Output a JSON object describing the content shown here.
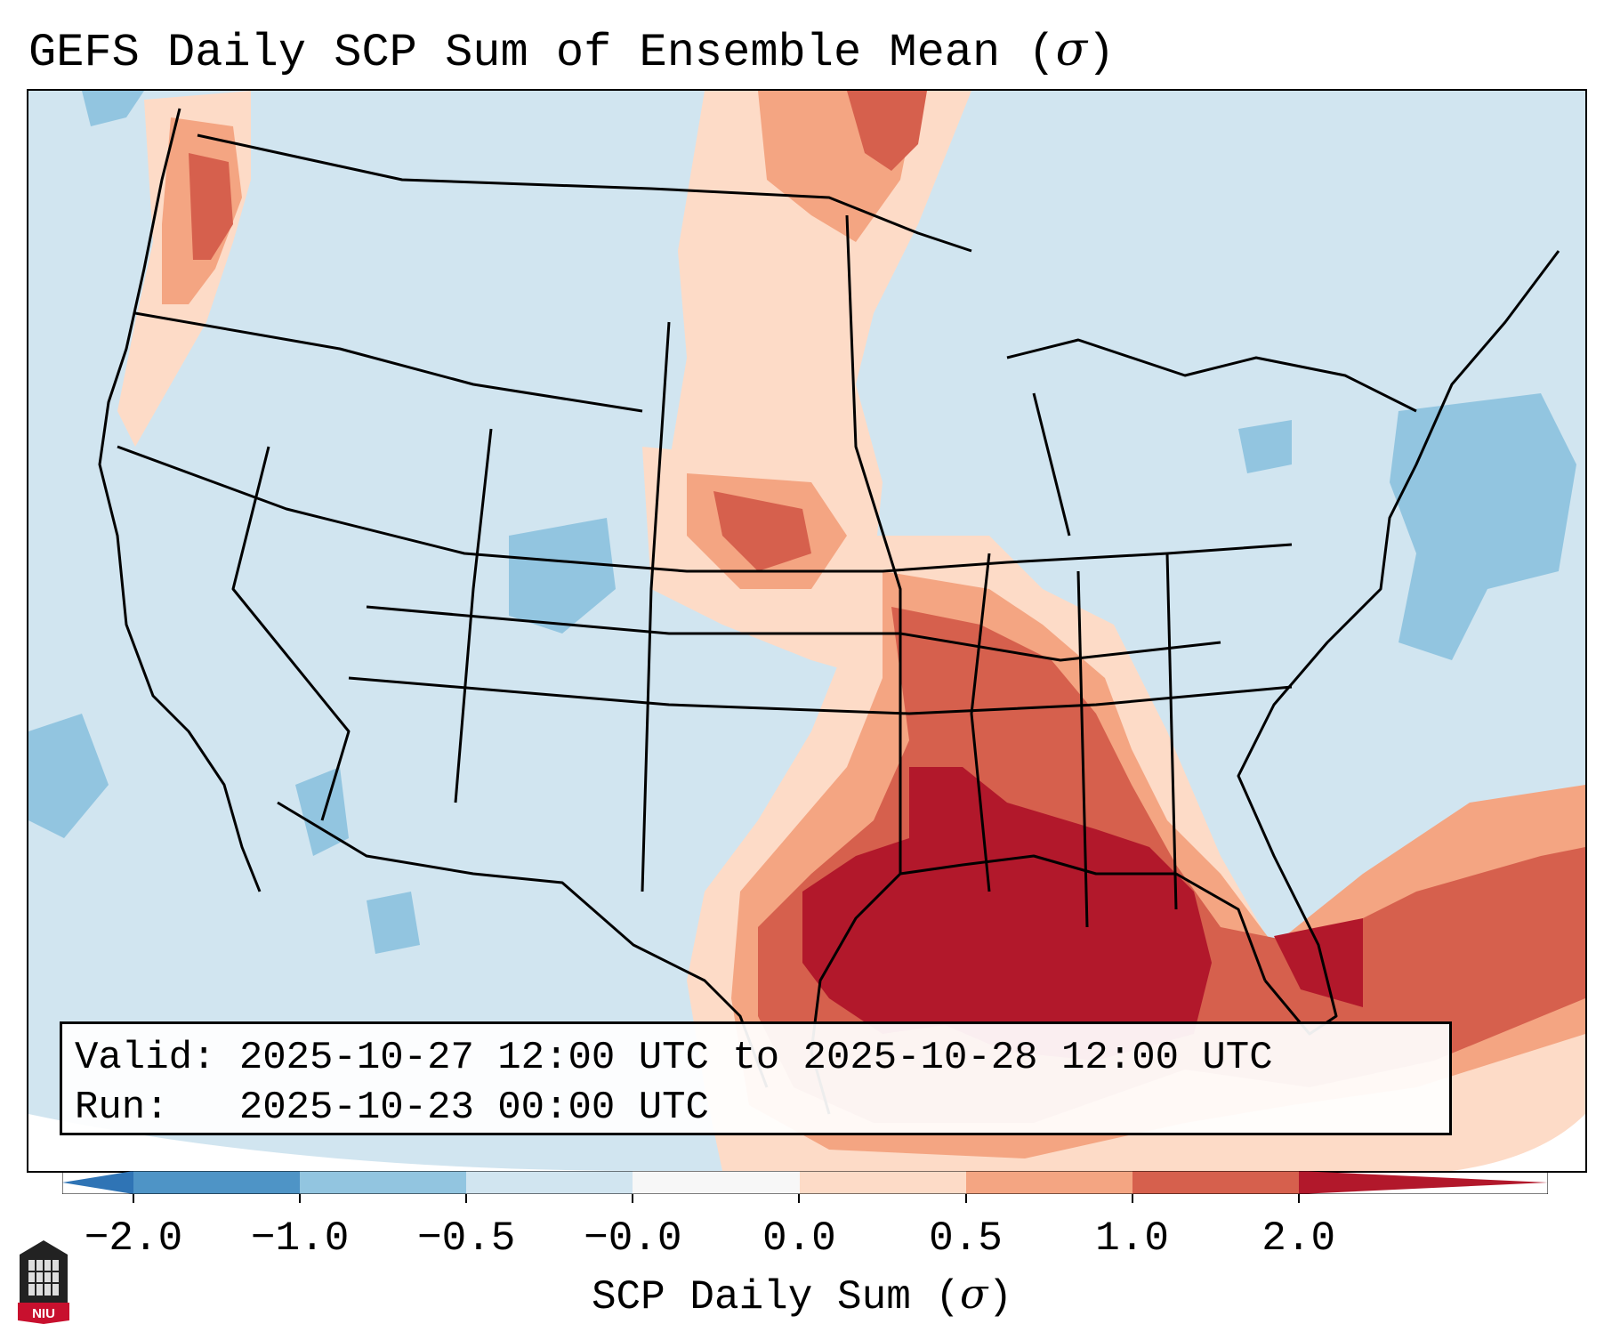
{
  "title": {
    "prefix": "GEFS Daily SCP Sum of Ensemble Mean (",
    "symbol": "σ",
    "suffix": ")"
  },
  "info": {
    "valid": "Valid: 2025-10-27 12:00 UTC to 2025-10-28 12:00 UTC",
    "run": "Run:   2025-10-23 00:00 UTC"
  },
  "colorbar": {
    "label_prefix": "SCP Daily Sum (",
    "label_symbol": "σ",
    "label_suffix": ")",
    "ticks": [
      "−2.0",
      "−1.0",
      "−0.5",
      "−0.0",
      "0.0",
      "0.5",
      "1.0",
      "2.0"
    ],
    "colors": {
      "lt_neg2": "#2f74b5",
      "neg2_neg1": "#4e94c6",
      "neg1_neg05": "#92c5e0",
      "neg05_neg0": "#d1e5f0",
      "zero_band": "#f7f7f7",
      "pos0_05": "#fddbc7",
      "pos05_1": "#f4a582",
      "pos1_2": "#d6604d",
      "gt2": "#b2182b"
    }
  },
  "logo": {
    "text": "NIU"
  }
}
